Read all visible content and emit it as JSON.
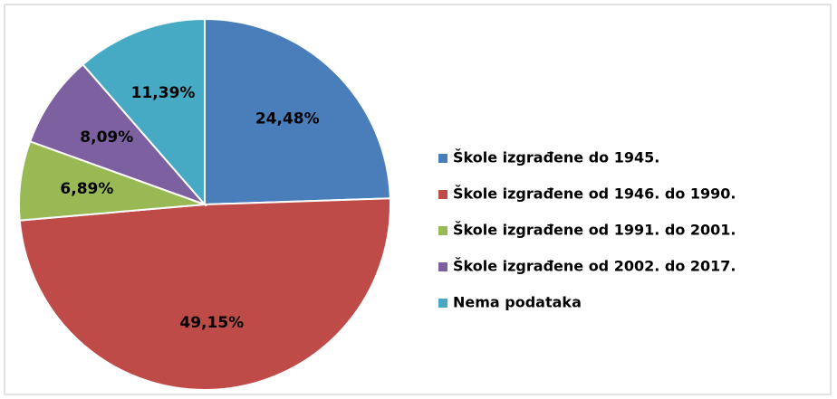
{
  "chart_data": {
    "type": "pie",
    "categories": [
      "Škole izgrađene do 1945.",
      "Škole izgrađene od 1946. do 1990.",
      "Škole izgrađene od 1991. do 2001.",
      "Škole izgrađene od 2002. do 2017.",
      "Nema podataka"
    ],
    "values": [
      24.48,
      49.15,
      6.89,
      8.09,
      11.39
    ],
    "value_labels": [
      "24,48%",
      "49,15%",
      "6,89%",
      "8,09%",
      "11,39%"
    ],
    "colors": [
      "#4a7ebb",
      "#be4b48",
      "#98b954",
      "#7d60a0",
      "#46aac5"
    ],
    "legend": "right"
  }
}
